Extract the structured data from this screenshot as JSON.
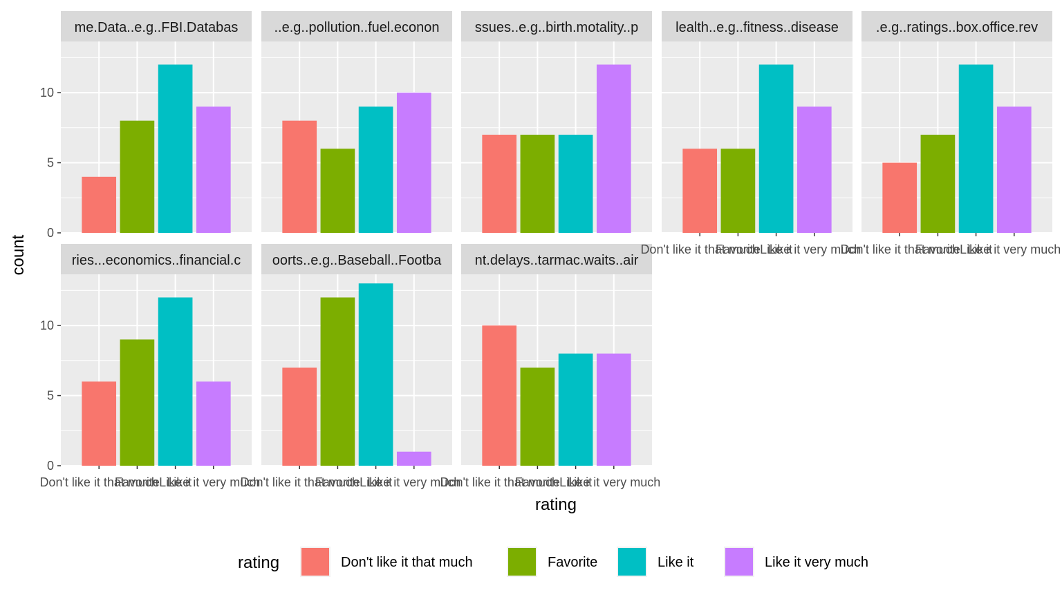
{
  "chart_data": {
    "type": "bar",
    "layout": "facet_wrap",
    "xlabel": "rating",
    "ylabel": "count",
    "ylim": [
      0,
      13.65
    ],
    "yticks": [
      0,
      5,
      10
    ],
    "grid": true,
    "legend_position": "bottom",
    "legend_title": "rating",
    "categories": [
      "Don't like it that much",
      "Favorite",
      "Like it",
      "Like it very much"
    ],
    "colors": [
      "#F8766D",
      "#7CAE00",
      "#00BFC4",
      "#C77CFF"
    ],
    "facets": [
      {
        "label": "me.Data..e.g..FBI.Databas",
        "values": [
          4,
          8,
          12,
          9
        ]
      },
      {
        "label": "..e.g..pollution..fuel.econon",
        "values": [
          8,
          6,
          9,
          10
        ]
      },
      {
        "label": "ssues..e.g..birth.motality..p",
        "values": [
          7,
          7,
          7,
          12
        ]
      },
      {
        "label": "lealth..e.g..fitness..disease",
        "values": [
          6,
          6,
          12,
          9
        ]
      },
      {
        "label": ".e.g..ratings..box.office.rev",
        "values": [
          5,
          7,
          12,
          9
        ]
      },
      {
        "label": "ries...economics..financial.c",
        "values": [
          6,
          9,
          12,
          6
        ]
      },
      {
        "label": "oorts..e.g..Baseball..Footba",
        "values": [
          7,
          12,
          13,
          1
        ]
      },
      {
        "label": "nt.delays..tarmac.waits..air",
        "values": [
          10,
          7,
          8,
          8
        ]
      }
    ]
  }
}
